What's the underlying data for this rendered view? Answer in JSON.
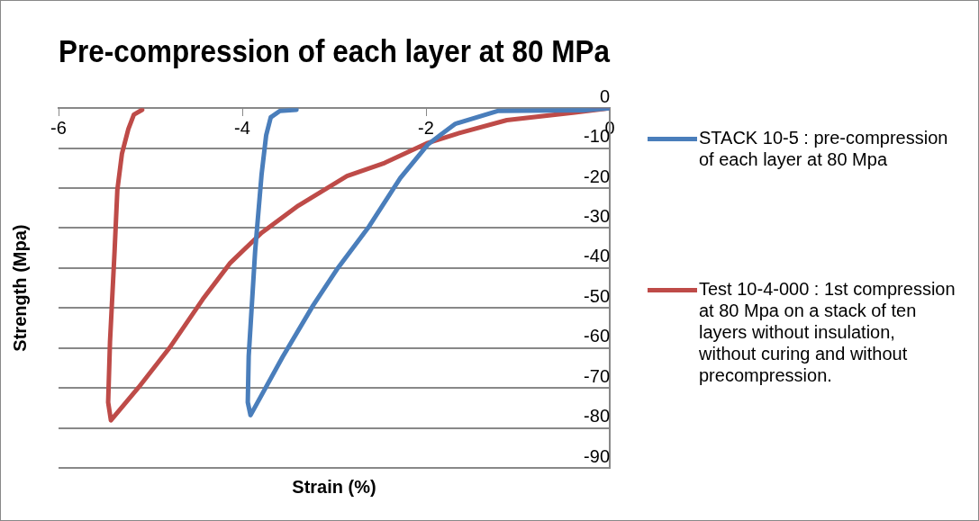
{
  "chart_data": {
    "type": "line",
    "title": "Pre-compression of each layer at 80 MPa",
    "xlabel": "Strain (%)",
    "ylabel": "Strength (Mpa)",
    "xlim": [
      -6,
      0
    ],
    "xticks": [
      -6,
      -4,
      -2,
      0
    ],
    "ylim": [
      -90,
      0
    ],
    "yticks": [
      -90,
      -80,
      -70,
      -60,
      -50,
      -40,
      -30,
      -20,
      -10,
      0
    ],
    "grid": "y",
    "legend": "right",
    "marker": "none",
    "line_style": "solid",
    "series": [
      {
        "name": "STACK 10-5 : pre-compression of each layer at 80 Mpa",
        "color": "#4a7ebb",
        "x": [
          0,
          -0.28,
          -1.22,
          -1.68,
          -1.85,
          -1.98,
          -2.28,
          -2.62,
          -2.96,
          -3.23,
          -3.56,
          -3.91,
          -3.94,
          -3.93,
          -3.86,
          -3.79,
          -3.74,
          -3.69,
          -3.59,
          -3.41
        ],
        "values": [
          0,
          -0.5,
          -0.7,
          -3.9,
          -6.8,
          -9.1,
          -17.5,
          -29.6,
          -40,
          -49.4,
          -62.2,
          -76.8,
          -73.6,
          -62,
          -35.8,
          -16.6,
          -6.8,
          -2.3,
          -0.7,
          -0.4
        ]
      },
      {
        "name": "Test 10-4-000 : 1st compression at 80 Mpa on a stack of ten layers without insulation, without curing and without precompression.",
        "color": "#be4b48",
        "x": [
          0,
          -0.38,
          -1.12,
          -1.62,
          -1.98,
          -2.45,
          -2.86,
          -3.39,
          -3.79,
          -4.13,
          -4.43,
          -4.79,
          -5.13,
          -5.43,
          -5.46,
          -5.44,
          -5.39,
          -5.36,
          -5.31,
          -5.24,
          -5.18,
          -5.09
        ],
        "values": [
          0,
          -1.1,
          -3,
          -6.1,
          -8.7,
          -13.7,
          -17,
          -24.4,
          -31.2,
          -38.7,
          -47.8,
          -59.9,
          -69.9,
          -78.1,
          -73.6,
          -58.5,
          -35.8,
          -20.5,
          -11.4,
          -5.2,
          -1.6,
          -0.4
        ]
      }
    ]
  }
}
